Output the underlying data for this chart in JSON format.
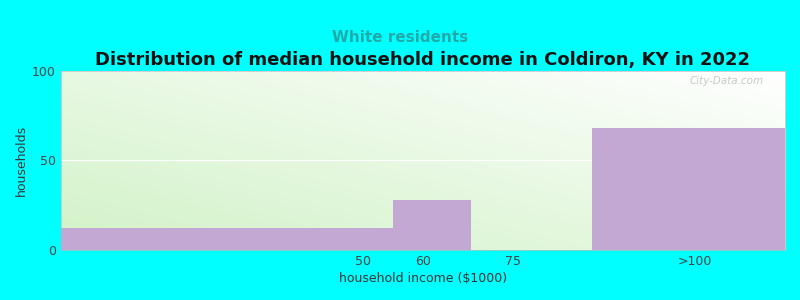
{
  "title": "Distribution of median household income in Coldiron, KY in 2022",
  "subtitle": "White residents",
  "xlabel": "household income ($1000)",
  "ylabel": "households",
  "tick_labels": [
    "50",
    "60",
    "75",
    ">100"
  ],
  "bar_color": "#c4a8d4",
  "background_color": "#00FFFF",
  "ylim": [
    0,
    100
  ],
  "yticks": [
    0,
    50,
    100
  ],
  "title_fontsize": 13,
  "subtitle_fontsize": 11,
  "subtitle_color": "#22AAAA",
  "axis_label_fontsize": 9,
  "watermark": "City-Data.com",
  "bars": [
    {
      "x_left": 0,
      "x_right": 55,
      "height": 12
    },
    {
      "x_left": 55,
      "x_right": 68,
      "height": 28
    },
    {
      "x_left": 68,
      "x_right": 88,
      "height": 0
    },
    {
      "x_left": 88,
      "x_right": 120,
      "height": 68
    }
  ],
  "xlim": [
    0,
    120
  ],
  "xtick_pos": [
    50,
    60,
    75,
    105
  ],
  "hline_color": "#dddddd",
  "gradient_top_color": "#ffffff",
  "gradient_bottom_left_color": "#d8f0d0"
}
